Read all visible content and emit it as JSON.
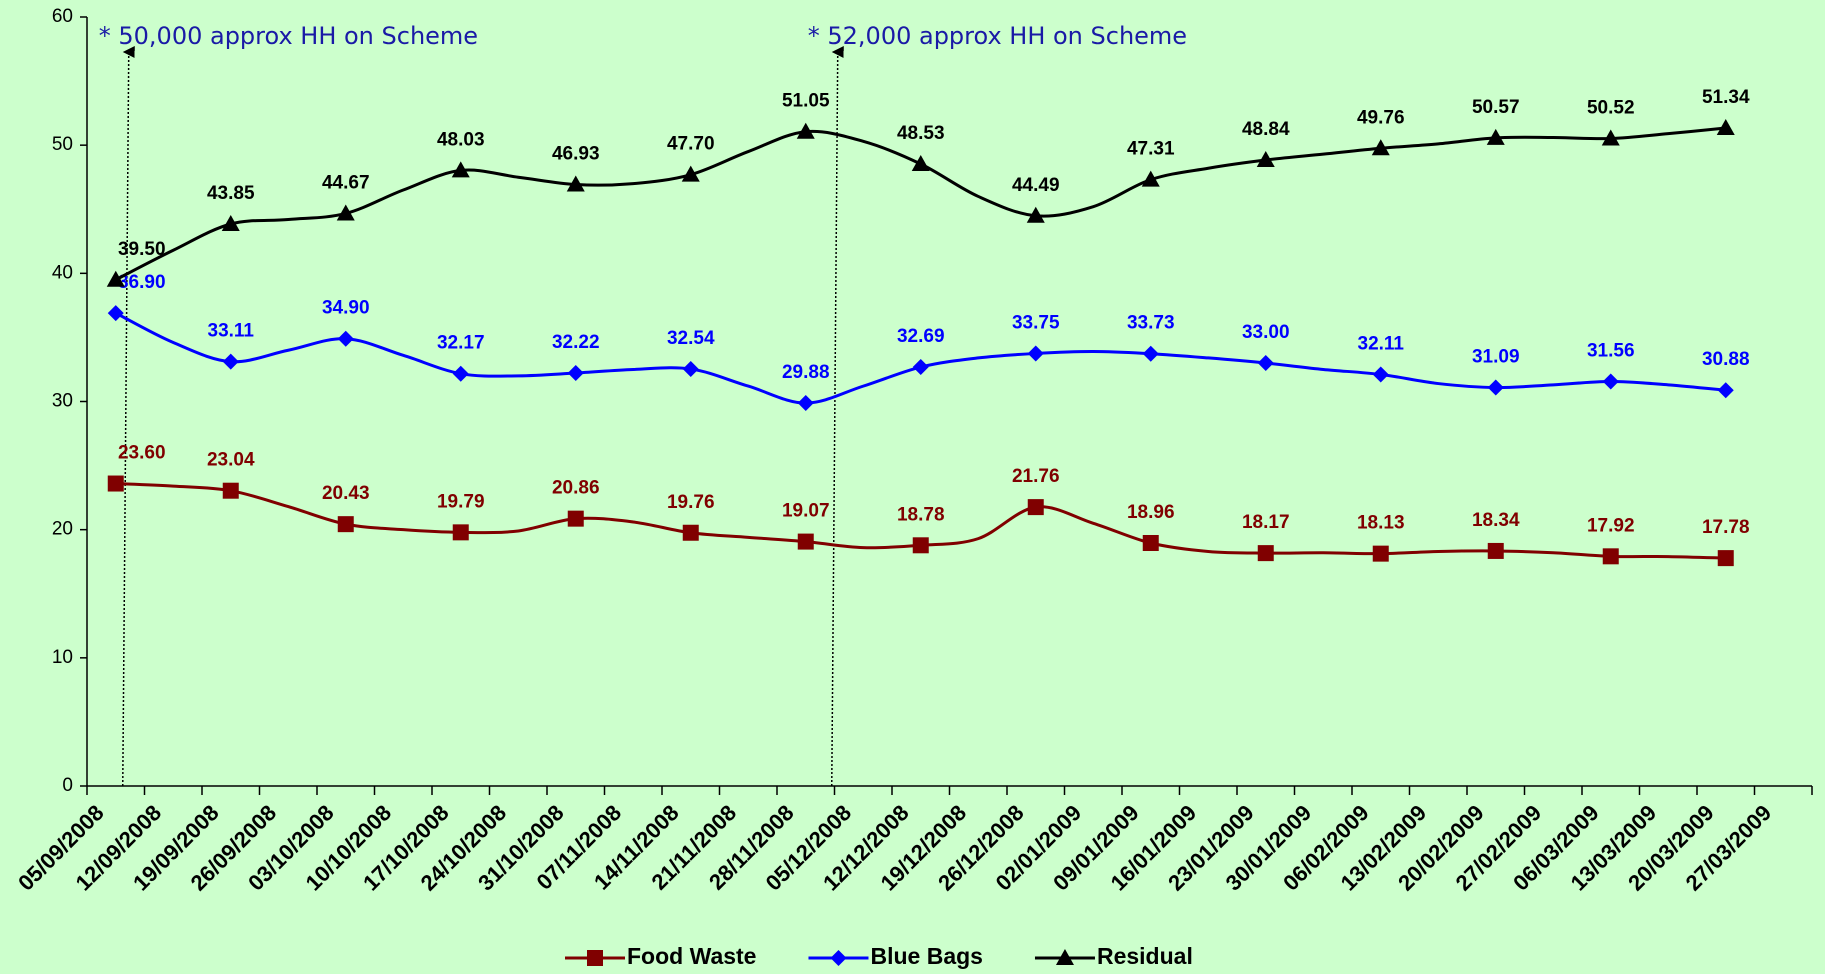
{
  "chart_data": {
    "type": "line",
    "categories": [
      "05/09/2008",
      "12/09/2008",
      "19/09/2008",
      "26/09/2008",
      "03/10/2008",
      "10/10/2008",
      "17/10/2008",
      "24/10/2008",
      "31/10/2008",
      "07/11/2008",
      "14/11/2008",
      "21/11/2008",
      "28/11/2008",
      "05/12/2008",
      "12/12/2008",
      "19/12/2008",
      "26/12/2008",
      "02/01/2009",
      "09/01/2009",
      "16/01/2009",
      "23/01/2009",
      "30/01/2009",
      "06/02/2009",
      "13/02/2009",
      "20/02/2009",
      "27/02/2009",
      "06/03/2009",
      "13/03/2009",
      "20/03/2009",
      "27/03/2009"
    ],
    "series": [
      {
        "name": "Food Waste",
        "color": "#800000",
        "marker": "square",
        "values": [
          23.6,
          23.4,
          23.04,
          21.8,
          20.43,
          20.0,
          19.79,
          19.9,
          20.86,
          20.6,
          19.76,
          19.4,
          19.07,
          18.6,
          18.78,
          19.3,
          21.76,
          20.5,
          18.96,
          18.3,
          18.17,
          18.2,
          18.13,
          18.3,
          18.34,
          18.2,
          17.92,
          17.9,
          17.78,
          null
        ],
        "value_labels": [
          "23.60",
          null,
          "23.04",
          null,
          "20.43",
          null,
          "19.79",
          null,
          "20.86",
          null,
          "19.76",
          null,
          "19.07",
          null,
          "18.78",
          null,
          "21.76",
          null,
          "18.96",
          null,
          "18.17",
          null,
          "18.13",
          null,
          "18.34",
          null,
          "17.92",
          null,
          "17.78",
          null
        ]
      },
      {
        "name": "Blue Bags",
        "color": "#0000ff",
        "marker": "diamond",
        "values": [
          36.9,
          34.6,
          33.11,
          34.0,
          34.9,
          33.6,
          32.17,
          32.0,
          32.22,
          32.5,
          32.54,
          31.2,
          29.88,
          31.2,
          32.69,
          33.4,
          33.75,
          33.9,
          33.73,
          33.4,
          33.0,
          32.5,
          32.11,
          31.4,
          31.09,
          31.3,
          31.56,
          31.3,
          30.88,
          null
        ],
        "value_labels": [
          "36.90",
          null,
          "33.11",
          null,
          "34.90",
          null,
          "32.17",
          null,
          "32.22",
          null,
          "32.54",
          null,
          "29.88",
          null,
          "32.69",
          null,
          "33.75",
          null,
          "33.73",
          null,
          "33.00",
          null,
          "32.11",
          null,
          "31.09",
          null,
          "31.56",
          null,
          "30.88",
          null
        ]
      },
      {
        "name": "Residual",
        "color": "#000000",
        "marker": "triangle",
        "values": [
          39.5,
          41.8,
          43.85,
          44.2,
          44.67,
          46.5,
          48.03,
          47.5,
          46.93,
          47.0,
          47.7,
          49.5,
          51.05,
          50.3,
          48.53,
          46.0,
          44.49,
          45.2,
          47.31,
          48.2,
          48.84,
          49.3,
          49.76,
          50.1,
          50.57,
          50.6,
          50.52,
          50.9,
          51.34,
          null
        ],
        "value_labels": [
          "39.50",
          null,
          "43.85",
          null,
          "44.67",
          null,
          "48.03",
          null,
          "46.93",
          null,
          "47.70",
          null,
          "51.05",
          null,
          "48.53",
          null,
          "44.49",
          null,
          "47.31",
          null,
          "48.84",
          null,
          "49.76",
          null,
          "50.57",
          null,
          "50.52",
          null,
          "51.34",
          null
        ]
      }
    ],
    "annotations": [
      "* 50,000 approx HH on Scheme",
      "* 52,000 approx HH on Scheme"
    ],
    "ylim": [
      0,
      60
    ],
    "yticks": [
      0,
      10,
      20,
      30,
      40,
      50,
      60
    ],
    "grid": false,
    "legend": "bottom"
  }
}
